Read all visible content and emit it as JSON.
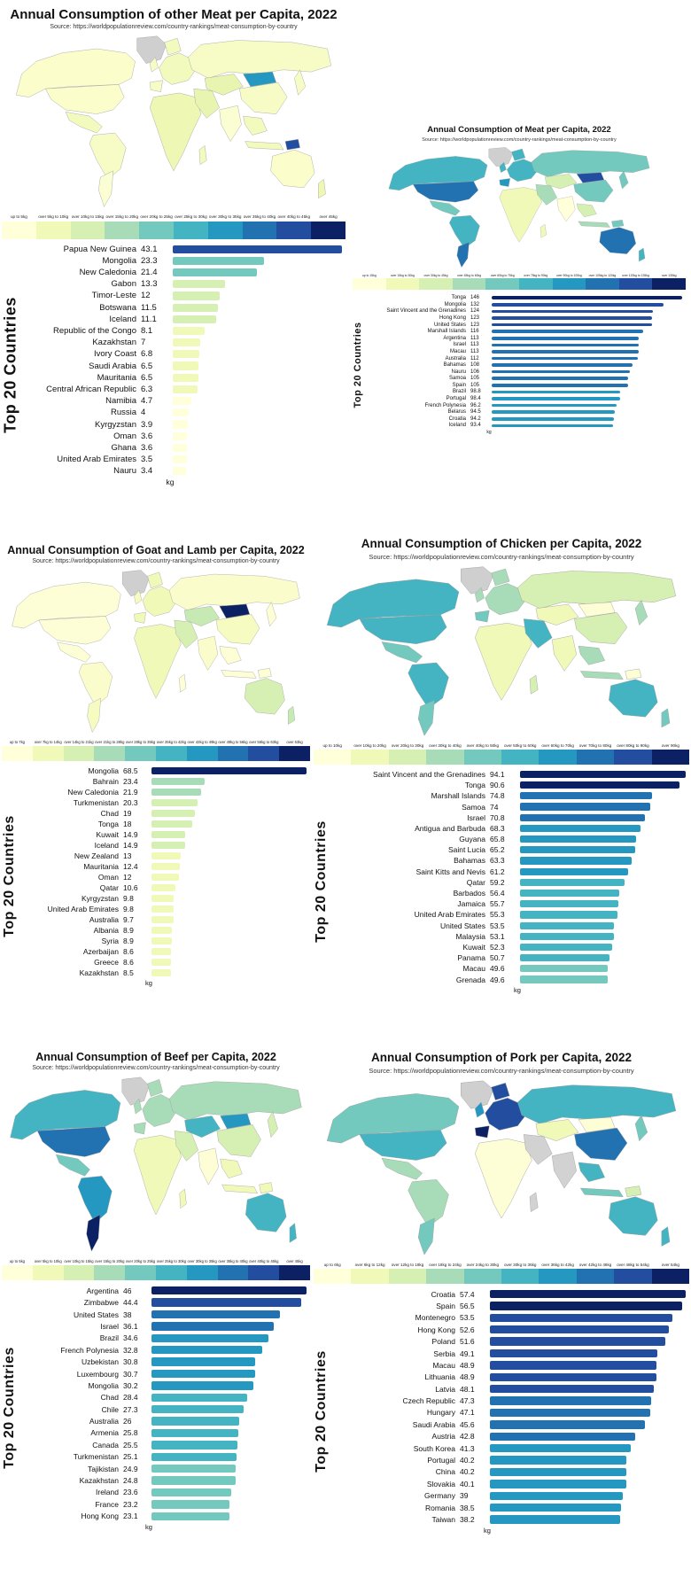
{
  "palette": [
    "#ffffd9",
    "#f1f9b9",
    "#d6efb3",
    "#a8dcb8",
    "#73c9bd",
    "#45b4c2",
    "#2498c1",
    "#2272b2",
    "#234ea0",
    "#0c2163"
  ],
  "chart_data": [
    {
      "type": "bar",
      "title": "Annual Consumption of other Meat per Capita, 2022",
      "source": "Source: https://worldpopulationreview.com/country-rankings/meat-consumption-by-country",
      "ylabel": "Top 20 Countries",
      "xlabel": "kg",
      "bin_size": 5,
      "legend_labels": [
        "up to 5kg",
        "over 5kg to 10kg",
        "over 10kg to 15kg",
        "over 15kg to 20kg",
        "over 20kg to 25kg",
        "over 25kg to 30kg",
        "over 30kg to 35kg",
        "over 35kg to 40kg",
        "over 40kg to 45kg",
        "over 45kg"
      ],
      "categories": [
        "Papua New Guinea",
        "Mongolia",
        "New Caledonia",
        "Gabon",
        "Timor-Leste",
        "Botswana",
        "Iceland",
        "Republic of the Congo",
        "Kazakhstan",
        "Ivory Coast",
        "Saudi Arabia",
        "Mauritania",
        "Central African Republic",
        "Namibia",
        "Russia",
        "Kyrgyzstan",
        "Oman",
        "Ghana",
        "United Arab Emirates",
        "Nauru"
      ],
      "values": [
        43.1,
        23.3,
        21.4,
        13.3,
        12,
        11.5,
        11.1,
        8.1,
        7,
        6.8,
        6.5,
        6.5,
        6.3,
        4.7,
        4,
        3.9,
        3.6,
        3.6,
        3.5,
        3.4
      ],
      "map_fills": {
        "default": "#fbfdcb",
        "greenland": "#cfcfcf",
        "canada": "#fbfdcb",
        "usa": "#fbfdcb",
        "mexico": "#f3fabd",
        "southamerica": "#f7fcc6",
        "argentina": "#fbfdd2",
        "europe": "#f3fabd",
        "uk": "#f7fcc6",
        "iberia": "#f7fcc6",
        "africa": "#eef8b4",
        "madagascar": "#f3fabd",
        "middleeast": "#e7f5b0",
        "russia": "#f7fcc6",
        "centralasia": "#e7f5b0",
        "mongolia": "#2498c1",
        "china": "#f7fcc6",
        "india": "#fbfdd2",
        "sea": "#f3fabd",
        "indonesia": "#f3fabd",
        "japan": "#f7fcc6",
        "png": "#234ea0",
        "australia": "#fbfdcb",
        "newzealand": "#eef8b4"
      }
    },
    {
      "type": "bar",
      "title": "Annual Consumption of Meat per Capita, 2022",
      "source": "Source: https://worldpopulationreview.com/country-rankings/meat-consumption-by-country",
      "ylabel": "Top 20 Countries",
      "xlabel": "kg",
      "bin_size": 15,
      "legend_labels": [
        "up to 15kg",
        "over 15kg to 30kg",
        "over 30kg to 45kg",
        "over 45kg to 60kg",
        "over 60kg to 75kg",
        "over 75kg to 90kg",
        "over 90kg to 105kg",
        "over 105kg to 120kg",
        "over 120kg to 135kg",
        "over 135kg"
      ],
      "categories": [
        "Tonga",
        "Mongolia",
        "Saint Vincent and the Grenadines",
        "Hong Kong",
        "United States",
        "Marshall Islands",
        "Argentina",
        "Israel",
        "Macau",
        "Australia",
        "Bahamas",
        "Nauru",
        "Samoa",
        "Spain",
        "Brazil",
        "Portugal",
        "French Polynesia",
        "Belarus",
        "Croatia",
        "Iceland"
      ],
      "values": [
        146,
        132,
        124,
        123,
        123,
        116,
        113,
        113,
        113,
        112,
        108,
        106,
        105,
        105,
        98.8,
        98.4,
        96.2,
        94.5,
        94.2,
        93.4
      ],
      "map_fills": {
        "default": "#d6efb3",
        "greenland": "#cfcfcf",
        "canada": "#45b4c2",
        "usa": "#2272b2",
        "mexico": "#73c9bd",
        "southamerica": "#45b4c2",
        "argentina": "#2272b2",
        "europe": "#45b4c2",
        "uk": "#45b4c2",
        "iberia": "#2498c1",
        "africa": "#f1f9b9",
        "madagascar": "#f1f9b9",
        "middleeast": "#a8dcb8",
        "russia": "#73c9bd",
        "centralasia": "#d6efb3",
        "mongolia": "#234ea0",
        "china": "#73c9bd",
        "india": "#ffffd9",
        "sea": "#d6efb3",
        "indonesia": "#a8dcb8",
        "japan": "#73c9bd",
        "png": "#73c9bd",
        "australia": "#2272b2",
        "newzealand": "#45b4c2"
      }
    },
    {
      "type": "bar",
      "title": "Annual Consumption of Goat and Lamb per Capita, 2022",
      "source": "Source: https://worldpopulationreview.com/country-rankings/meat-consumption-by-country",
      "ylabel": "Top 20 Countries",
      "xlabel": "kg",
      "bin_size": 7,
      "legend_labels": [
        "up to 7kg",
        "over 7kg to 14kg",
        "over 14kg to 21kg",
        "over 21kg to 28kg",
        "over 28kg to 35kg",
        "over 35kg to 42kg",
        "over 42kg to 49kg",
        "over 49kg to 56kg",
        "over 56kg to 63kg",
        "over 63kg"
      ],
      "categories": [
        "Mongolia",
        "Bahrain",
        "New Caledonia",
        "Turkmenistan",
        "Chad",
        "Tonga",
        "Kuwait",
        "Iceland",
        "New Zealand",
        "Mauritania",
        "Oman",
        "Qatar",
        "Kyrgyzstan",
        "United Arab Emirates",
        "Australia",
        "Albania",
        "Syria",
        "Azerbaijan",
        "Greece",
        "Kazakhstan"
      ],
      "values": [
        68.5,
        23.4,
        21.9,
        20.3,
        19,
        18,
        14.9,
        14.9,
        13,
        12.4,
        12,
        10.6,
        9.8,
        9.8,
        9.7,
        8.9,
        8.9,
        8.6,
        8.6,
        8.5
      ],
      "map_fills": {
        "default": "#fdfdd6",
        "greenland": "#cfcfcf",
        "canada": "#fdfdd6",
        "usa": "#fdfdd6",
        "mexico": "#fdfdd6",
        "southamerica": "#fbfccc",
        "argentina": "#f6fbc2",
        "europe": "#f1f9b9",
        "uk": "#f6fbc2",
        "iberia": "#f1f9b9",
        "africa": "#f1f9b9",
        "madagascar": "#fdfdd6",
        "middleeast": "#d6efb3",
        "russia": "#fbfccc",
        "centralasia": "#c7e9b4",
        "mongolia": "#0c2163",
        "china": "#f6fbc2",
        "india": "#fbfccc",
        "sea": "#fdfdd6",
        "indonesia": "#fdfdd6",
        "japan": "#fdfdd6",
        "png": "#fdfdd6",
        "australia": "#d6efb3",
        "newzealand": "#c7e9b4"
      }
    },
    {
      "type": "bar",
      "title": "Annual Consumption of Chicken per Capita, 2022",
      "source": "Source: https://worldpopulationreview.com/country-rankings/meat-consumption-by-country",
      "ylabel": "Top 20 Countries",
      "xlabel": "kg",
      "bin_size": 10,
      "legend_labels": [
        "up to 10kg",
        "over 10kg to 20kg",
        "over 20kg to 30kg",
        "over 30kg to 40kg",
        "over 40kg to 50kg",
        "over 50kg to 60kg",
        "over 60kg to 70kg",
        "over 70kg to 80kg",
        "over 80kg to 90kg",
        "over 90kg"
      ],
      "categories": [
        "Saint Vincent and the Grenadines",
        "Tonga",
        "Marshall Islands",
        "Samoa",
        "Israel",
        "Antigua and Barbuda",
        "Guyana",
        "Saint Lucia",
        "Bahamas",
        "Saint Kitts and Nevis",
        "Qatar",
        "Barbados",
        "Jamaica",
        "United Arab Emirates",
        "United States",
        "Malaysia",
        "Kuwait",
        "Panama",
        "Macau",
        "Grenada"
      ],
      "values": [
        94.1,
        90.6,
        74.8,
        74,
        70.8,
        68.3,
        65.8,
        65.2,
        63.3,
        61.2,
        59.2,
        56.4,
        55.7,
        55.3,
        53.5,
        53.1,
        52.3,
        50.7,
        49.6,
        49.6
      ],
      "map_fills": {
        "default": "#d6efb3",
        "greenland": "#cfcfcf",
        "canada": "#45b4c2",
        "usa": "#45b4c2",
        "mexico": "#73c9bd",
        "southamerica": "#45b4c2",
        "argentina": "#73c9bd",
        "europe": "#a8dcb8",
        "uk": "#a8dcb8",
        "iberia": "#73c9bd",
        "africa": "#f1f9b9",
        "madagascar": "#d6efb3",
        "middleeast": "#45b4c2",
        "russia": "#d6efb3",
        "centralasia": "#f1f9b9",
        "mongolia": "#fdfdd6",
        "china": "#d6efb3",
        "india": "#f1f9b9",
        "sea": "#a8dcb8",
        "indonesia": "#a8dcb8",
        "japan": "#a8dcb8",
        "png": "#fdfdd6",
        "australia": "#45b4c2",
        "newzealand": "#73c9bd"
      }
    },
    {
      "type": "bar",
      "title": "Annual Consumption of Beef per Capita, 2022",
      "source": "Source: https://worldpopulationreview.com/country-rankings/meat-consumption-by-country",
      "ylabel": "Top 20 Countries",
      "xlabel": "kg",
      "bin_size": 5,
      "legend_labels": [
        "up to 5kg",
        "over 5kg to 10kg",
        "over 10kg to 15kg",
        "over 15kg to 20kg",
        "over 20kg to 25kg",
        "over 25kg to 30kg",
        "over 30kg to 35kg",
        "over 35kg to 40kg",
        "over 40kg to 45kg",
        "over 45kg"
      ],
      "categories": [
        "Argentina",
        "Zimbabwe",
        "United States",
        "Israel",
        "Brazil",
        "French Polynesia",
        "Uzbekistan",
        "Luxembourg",
        "Mongolia",
        "Chad",
        "Chile",
        "Australia",
        "Armenia",
        "Canada",
        "Turkmenistan",
        "Tajikistan",
        "Kazakhstan",
        "Ireland",
        "France",
        "Hong Kong"
      ],
      "values": [
        46,
        44.4,
        38,
        36.1,
        34.6,
        32.8,
        30.8,
        30.7,
        30.2,
        28.4,
        27.3,
        26,
        25.8,
        25.5,
        25.1,
        24.9,
        24.8,
        23.6,
        23.2,
        23.1
      ],
      "map_fills": {
        "default": "#d6efb3",
        "greenland": "#cfcfcf",
        "canada": "#45b4c2",
        "usa": "#2272b2",
        "mexico": "#73c9bd",
        "southamerica": "#2498c1",
        "argentina": "#0c2163",
        "europe": "#a8dcb8",
        "uk": "#a8dcb8",
        "iberia": "#a8dcb8",
        "africa": "#f1f9b9",
        "madagascar": "#f1f9b9",
        "middleeast": "#d6efb3",
        "russia": "#a8dcb8",
        "centralasia": "#45b4c2",
        "mongolia": "#2498c1",
        "china": "#d6efb3",
        "india": "#fdfdd6",
        "sea": "#f1f9b9",
        "indonesia": "#f1f9b9",
        "japan": "#d6efb3",
        "png": "#f1f9b9",
        "australia": "#45b4c2",
        "newzealand": "#45b4c2"
      }
    },
    {
      "type": "bar",
      "title": "Annual Consumption of Pork per Capita, 2022",
      "source": "Source: https://worldpopulationreview.com/country-rankings/meat-consumption-by-country",
      "ylabel": "Top 20 Countries",
      "xlabel": "kg",
      "bin_size": 6,
      "legend_labels": [
        "up to 6kg",
        "over 6kg to 12kg",
        "over 12kg to 18kg",
        "over 18kg to 24kg",
        "over 24kg to 30kg",
        "over 30kg to 36kg",
        "over 36kg to 42kg",
        "over 42kg to 48kg",
        "over 48kg to 54kg",
        "over 54kg"
      ],
      "categories": [
        "Croatia",
        "Spain",
        "Montenegro",
        "Hong Kong",
        "Poland",
        "Serbia",
        "Macau",
        "Lithuania",
        "Latvia",
        "Czech Republic",
        "Hungary",
        "Saudi Arabia",
        "Austria",
        "South Korea",
        "Portugal",
        "China",
        "Slovakia",
        "Germany",
        "Romania",
        "Taiwan"
      ],
      "values": [
        57.4,
        56.5,
        53.5,
        52.6,
        51.6,
        49.1,
        48.9,
        48.9,
        48.1,
        47.3,
        47.1,
        45.6,
        42.8,
        41.3,
        40.2,
        40.2,
        40.1,
        39,
        38.5,
        38.2
      ],
      "map_fills": {
        "default": "#d6efb3",
        "greenland": "#cfcfcf",
        "canada": "#73c9bd",
        "usa": "#45b4c2",
        "mexico": "#a8dcb8",
        "southamerica": "#a8dcb8",
        "argentina": "#73c9bd",
        "europe": "#234ea0",
        "uk": "#2498c1",
        "iberia": "#0c2163",
        "africa": "#fdfdd6",
        "madagascar": "#d2d2d2",
        "middleeast": "#d2d2d2",
        "russia": "#45b4c2",
        "centralasia": "#f1f9b9",
        "mongolia": "#fdfdd6",
        "china": "#2272b2",
        "india": "#d2d2d2",
        "sea": "#45b4c2",
        "indonesia": "#73c9bd",
        "japan": "#73c9bd",
        "png": "#d6efb3",
        "australia": "#45b4c2",
        "newzealand": "#45b4c2"
      }
    }
  ]
}
